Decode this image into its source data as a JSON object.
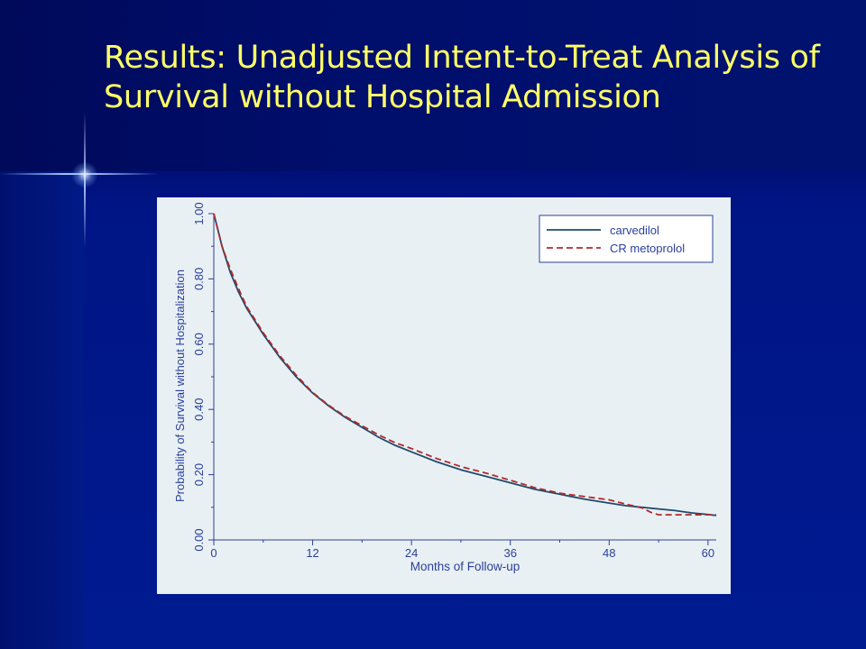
{
  "slide": {
    "title": "Results: Unadjusted Intent-to-Treat Analysis of Survival without Hospital Admission"
  },
  "chart_data": {
    "type": "line",
    "xlabel": "Months of Follow-up",
    "ylabel": "Probability of Survival without Hospitalization",
    "xlim": [
      0,
      61
    ],
    "ylim": [
      0,
      1
    ],
    "x_ticks": [
      "0",
      "12",
      "24",
      "36",
      "48",
      "60"
    ],
    "y_ticks": [
      "0.00",
      "0.20",
      "0.40",
      "0.60",
      "0.80",
      "1.00"
    ],
    "grid": false,
    "legend_position": "top-right",
    "series": [
      {
        "name": "carvedilol",
        "color": "#1f4a6b",
        "dash": "solid",
        "x": [
          0,
          0.5,
          1,
          2,
          3,
          4,
          5,
          6,
          8,
          10,
          12,
          14,
          16,
          18,
          20,
          22,
          24,
          27,
          30,
          33,
          36,
          39,
          42,
          45,
          48,
          50,
          52,
          54,
          56,
          58,
          60,
          61
        ],
        "y": [
          1.0,
          0.95,
          0.9,
          0.82,
          0.76,
          0.71,
          0.67,
          0.63,
          0.56,
          0.5,
          0.45,
          0.41,
          0.375,
          0.345,
          0.315,
          0.29,
          0.27,
          0.24,
          0.215,
          0.195,
          0.175,
          0.155,
          0.14,
          0.125,
          0.113,
          0.105,
          0.1,
          0.095,
          0.09,
          0.083,
          0.078,
          0.075
        ]
      },
      {
        "name": "CR metoprolol",
        "color": "#b02a2a",
        "dash": "dashed",
        "x": [
          0,
          0.5,
          1,
          2,
          3,
          4,
          5,
          6,
          8,
          10,
          12,
          14,
          16,
          18,
          20,
          22,
          24,
          27,
          30,
          33,
          36,
          39,
          42,
          45,
          48,
          50,
          52,
          53,
          54,
          56,
          58,
          60,
          61
        ],
        "y": [
          1.0,
          0.95,
          0.9,
          0.83,
          0.77,
          0.715,
          0.675,
          0.635,
          0.565,
          0.505,
          0.452,
          0.412,
          0.378,
          0.35,
          0.322,
          0.298,
          0.28,
          0.25,
          0.225,
          0.205,
          0.183,
          0.16,
          0.143,
          0.133,
          0.123,
          0.11,
          0.098,
          0.085,
          0.077,
          0.077,
          0.077,
          0.077,
          0.077
        ]
      }
    ]
  }
}
